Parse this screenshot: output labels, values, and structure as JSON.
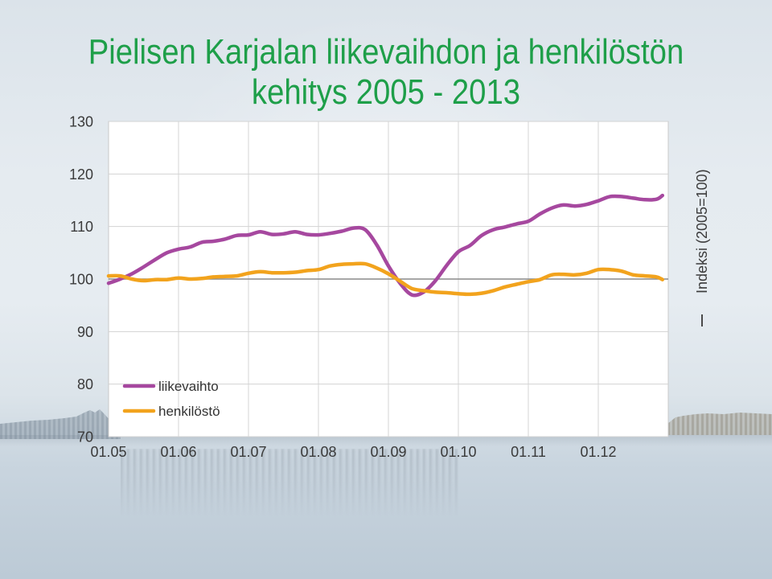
{
  "chart_data": {
    "type": "line",
    "title": [
      "Pielisen Karjalan liikevaihdon ja henkilöstön",
      "kehitys 2005 - 2013"
    ],
    "ylabel": "Indeksi (2005=100)",
    "ylabel_position": "right",
    "ylim": [
      70,
      130
    ],
    "y_ticks": [
      130,
      120,
      110,
      100,
      90,
      80,
      70
    ],
    "xlim": [
      "01.05",
      "01.13"
    ],
    "x_ticks": [
      "01.05",
      "01.06",
      "01.07",
      "01.08",
      "01.09",
      "01.10",
      "01.11",
      "01.12"
    ],
    "reference_line": 100,
    "grid": true,
    "legend_position": "bottom-left",
    "x": [
      "01.05",
      "03.05",
      "05.05",
      "07.05",
      "09.05",
      "11.05",
      "01.06",
      "03.06",
      "05.06",
      "07.06",
      "09.06",
      "11.06",
      "01.07",
      "03.07",
      "05.07",
      "07.07",
      "09.07",
      "11.07",
      "01.08",
      "03.08",
      "05.08",
      "07.08",
      "09.08",
      "11.08",
      "01.09",
      "03.09",
      "05.09",
      "07.09",
      "09.09",
      "11.09",
      "01.10",
      "03.10",
      "05.10",
      "07.10",
      "09.10",
      "11.10",
      "01.11",
      "03.11",
      "05.11",
      "07.11",
      "09.11",
      "11.11",
      "01.12",
      "03.12",
      "05.12",
      "07.12",
      "09.12",
      "11.12",
      "12.12"
    ],
    "series": [
      {
        "name": "liikevaihto",
        "color": "#a6489f",
        "values": [
          99.2,
          100.0,
          101.0,
          102.3,
          103.7,
          105.0,
          105.7,
          106.1,
          107.0,
          107.2,
          107.6,
          108.3,
          108.4,
          109.0,
          108.5,
          108.6,
          109.0,
          108.5,
          108.4,
          108.7,
          109.1,
          109.7,
          109.4,
          106.5,
          102.5,
          99.2,
          97.0,
          97.5,
          99.6,
          102.6,
          105.2,
          106.4,
          108.3,
          109.4,
          109.9,
          110.5,
          111.0,
          112.4,
          113.5,
          114.1,
          113.9,
          114.2,
          114.9,
          115.7,
          115.7,
          115.4,
          115.1,
          115.2,
          115.9
        ]
      },
      {
        "name": "henkilöstö",
        "color": "#f2a31d",
        "values": [
          100.6,
          100.6,
          100.0,
          99.7,
          99.9,
          99.9,
          100.2,
          100.0,
          100.1,
          100.4,
          100.5,
          100.6,
          101.1,
          101.4,
          101.2,
          101.2,
          101.3,
          101.6,
          101.8,
          102.5,
          102.8,
          102.9,
          102.9,
          102.1,
          101.0,
          99.6,
          98.2,
          97.8,
          97.5,
          97.4,
          97.2,
          97.1,
          97.3,
          97.8,
          98.5,
          99.0,
          99.5,
          99.9,
          100.8,
          100.9,
          100.8,
          101.1,
          101.8,
          101.8,
          101.5,
          100.8,
          100.6,
          100.4,
          99.9
        ]
      }
    ]
  }
}
